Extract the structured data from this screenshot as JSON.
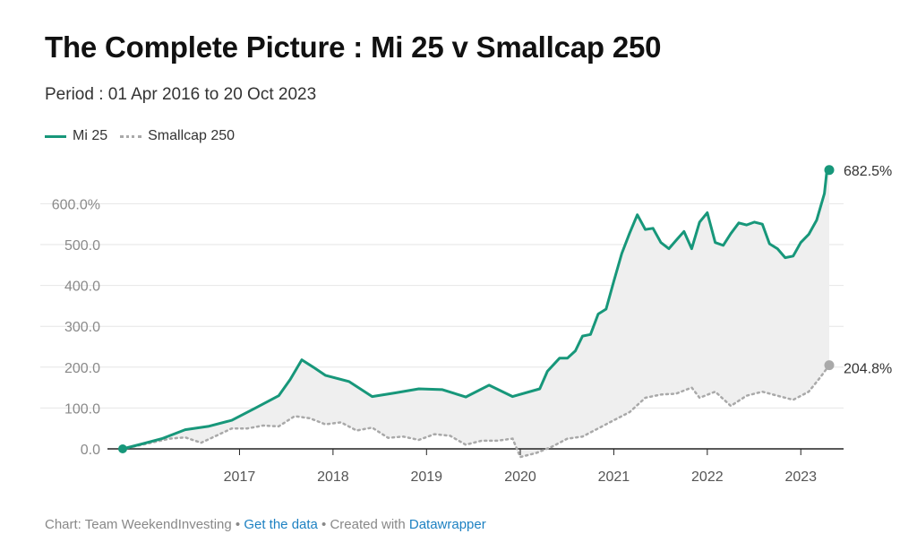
{
  "header": {
    "title": "The Complete Picture : Mi 25 v Smallcap 250",
    "subtitle": "Period : 01 Apr 2016 to 20 Oct 2023"
  },
  "legend": {
    "items": [
      {
        "label": "Mi 25",
        "style": "solid",
        "color": "#17977a"
      },
      {
        "label": "Smallcap 250",
        "style": "dotted",
        "color": "#a9a9a9"
      }
    ]
  },
  "footer": {
    "prefix": "Chart: Team WeekendInvesting",
    "sep1": " • ",
    "get_data": "Get the data",
    "sep2": " • Created with ",
    "tool": "Datawrapper"
  },
  "colors": {
    "mi25": "#17977a",
    "smallcap": "#a9a9a9",
    "area": "#efefef",
    "grid": "#e6e6e6",
    "axis": "#222222",
    "link": "#1d81c2"
  },
  "chart_data": {
    "type": "line",
    "title": "The Complete Picture : Mi 25 v Smallcap 250",
    "subtitle": "Period : 01 Apr 2016 to 20 Oct 2023",
    "x_axis": {
      "type": "date",
      "range": [
        "2016-04-01",
        "2023-10-20"
      ],
      "tick_labels": [
        "2017",
        "2018",
        "2019",
        "2020",
        "2021",
        "2022",
        "2023"
      ]
    },
    "y_axis": {
      "range": [
        -20,
        700
      ],
      "ticks": [
        0,
        100,
        200,
        300,
        400,
        500,
        600
      ],
      "tick_labels": [
        "0.0",
        "100.0",
        "200.0",
        "300.0",
        "400.0",
        "500.0",
        "600.0%"
      ]
    },
    "grid": true,
    "area_between_series": true,
    "legend_position": "top-left",
    "end_labels": [
      "682.5%",
      "204.8%"
    ],
    "series": [
      {
        "name": "Mi 25",
        "line_style": "solid",
        "points": [
          [
            "2016-04-01",
            0
          ],
          [
            "2016-06-15",
            12
          ],
          [
            "2016-09-01",
            25
          ],
          [
            "2016-12-01",
            47
          ],
          [
            "2017-03-01",
            55
          ],
          [
            "2017-06-01",
            70
          ],
          [
            "2017-09-01",
            100
          ],
          [
            "2017-12-01",
            130
          ],
          [
            "2018-01-15",
            170
          ],
          [
            "2018-03-01",
            218
          ],
          [
            "2018-04-15",
            200
          ],
          [
            "2018-06-01",
            180
          ],
          [
            "2018-09-01",
            165
          ],
          [
            "2018-12-01",
            128
          ],
          [
            "2019-03-01",
            137
          ],
          [
            "2019-06-01",
            147
          ],
          [
            "2019-09-01",
            145
          ],
          [
            "2019-12-01",
            127
          ],
          [
            "2020-03-01",
            156
          ],
          [
            "2020-06-01",
            128
          ],
          [
            "2020-09-15",
            147
          ],
          [
            "2020-10-15",
            190
          ],
          [
            "2020-12-01",
            222
          ],
          [
            "2021-01-01",
            222
          ],
          [
            "2021-02-01",
            240
          ],
          [
            "2021-03-01",
            276
          ],
          [
            "2021-04-01",
            280
          ],
          [
            "2021-05-01",
            330
          ],
          [
            "2021-06-01",
            342
          ],
          [
            "2021-07-01",
            410
          ],
          [
            "2021-08-01",
            478
          ],
          [
            "2021-09-01",
            528
          ],
          [
            "2021-10-01",
            573
          ],
          [
            "2021-11-01",
            537
          ],
          [
            "2021-12-01",
            540
          ],
          [
            "2022-01-01",
            505
          ],
          [
            "2022-02-01",
            490
          ],
          [
            "2022-03-01",
            510
          ],
          [
            "2022-04-01",
            532
          ],
          [
            "2022-05-01",
            490
          ],
          [
            "2022-06-01",
            555
          ],
          [
            "2022-07-01",
            578
          ],
          [
            "2022-08-01",
            505
          ],
          [
            "2022-09-01",
            498
          ],
          [
            "2022-10-01",
            527
          ],
          [
            "2022-11-01",
            553
          ],
          [
            "2022-12-01",
            548
          ],
          [
            "2023-01-01",
            555
          ],
          [
            "2023-02-01",
            550
          ],
          [
            "2023-03-01",
            502
          ],
          [
            "2023-04-01",
            490
          ],
          [
            "2023-05-01",
            468
          ],
          [
            "2023-06-01",
            472
          ],
          [
            "2023-07-01",
            505
          ],
          [
            "2023-08-01",
            525
          ],
          [
            "2023-09-01",
            560
          ],
          [
            "2023-10-01",
            625
          ],
          [
            "2023-10-10",
            675
          ],
          [
            "2023-10-20",
            682.5
          ]
        ]
      },
      {
        "name": "Smallcap 250",
        "line_style": "dotted",
        "points": [
          [
            "2016-04-01",
            0
          ],
          [
            "2016-07-01",
            12
          ],
          [
            "2016-10-01",
            25
          ],
          [
            "2016-12-01",
            28
          ],
          [
            "2017-02-01",
            15
          ],
          [
            "2017-04-01",
            32
          ],
          [
            "2017-06-01",
            50
          ],
          [
            "2017-08-01",
            50
          ],
          [
            "2017-10-01",
            57
          ],
          [
            "2017-12-01",
            55
          ],
          [
            "2018-02-01",
            80
          ],
          [
            "2018-04-01",
            75
          ],
          [
            "2018-06-01",
            60
          ],
          [
            "2018-08-01",
            65
          ],
          [
            "2018-10-01",
            45
          ],
          [
            "2018-12-01",
            52
          ],
          [
            "2019-02-01",
            27
          ],
          [
            "2019-04-01",
            30
          ],
          [
            "2019-06-01",
            22
          ],
          [
            "2019-08-01",
            36
          ],
          [
            "2019-10-01",
            32
          ],
          [
            "2019-12-01",
            10
          ],
          [
            "2020-02-01",
            20
          ],
          [
            "2020-04-01",
            20
          ],
          [
            "2020-06-01",
            25
          ],
          [
            "2020-07-01",
            -20
          ],
          [
            "2020-09-01",
            -10
          ],
          [
            "2020-11-01",
            5
          ],
          [
            "2021-01-01",
            25
          ],
          [
            "2021-03-01",
            30
          ],
          [
            "2021-05-01",
            50
          ],
          [
            "2021-07-01",
            70
          ],
          [
            "2021-09-01",
            90
          ],
          [
            "2021-11-01",
            125
          ],
          [
            "2022-01-01",
            133
          ],
          [
            "2022-03-01",
            135
          ],
          [
            "2022-05-01",
            150
          ],
          [
            "2022-06-01",
            125
          ],
          [
            "2022-08-01",
            140
          ],
          [
            "2022-10-01",
            105
          ],
          [
            "2022-12-01",
            130
          ],
          [
            "2023-02-01",
            140
          ],
          [
            "2023-04-01",
            130
          ],
          [
            "2023-06-01",
            120
          ],
          [
            "2023-08-01",
            140
          ],
          [
            "2023-09-15",
            175
          ],
          [
            "2023-10-20",
            204.8
          ]
        ]
      }
    ]
  }
}
